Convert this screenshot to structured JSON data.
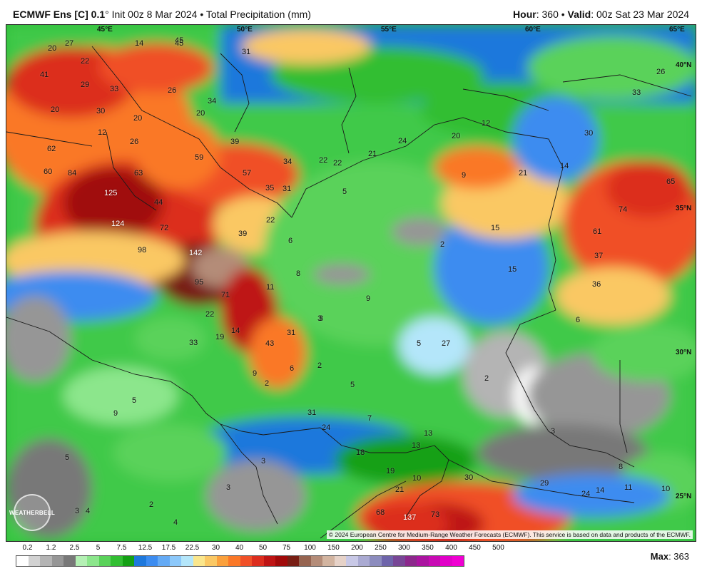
{
  "header": {
    "model": "ECMWF Ens [C] 0.1",
    "init": "° Init 00z 8 Mar 2024 • Total Precipitation (mm)",
    "hour_label": "Hour",
    "hour_value": ": 360 • ",
    "valid_label": "Valid",
    "valid_value": ": 00z Sat 23 Mar 2024"
  },
  "map": {
    "longitudes": [
      "45°E",
      "50°E",
      "55°E",
      "60°E",
      "65°E"
    ],
    "latitudes": [
      "40°N",
      "35°N",
      "30°N",
      "25°N"
    ],
    "copyright": "© 2024 European Centre for Medium-Range Weather Forecasts (ECMWF). This service is based on data and products of the ECMWF.",
    "logo_text": "WEATHERBELL",
    "value_labels": [
      "20",
      "27",
      "45",
      "14",
      "45",
      "31",
      "41",
      "22",
      "29",
      "33",
      "26",
      "20",
      "30",
      "20",
      "34",
      "20",
      "12",
      "26",
      "62",
      "60",
      "84",
      "59",
      "63",
      "39",
      "57",
      "34",
      "22",
      "22",
      "21",
      "24",
      "20",
      "12",
      "9",
      "21",
      "14",
      "65",
      "74",
      "61",
      "37",
      "36",
      "26",
      "30",
      "33",
      "125",
      "44",
      "72",
      "124",
      "98",
      "142",
      "95",
      "71",
      "22",
      "14",
      "19",
      "33",
      "35",
      "31",
      "22",
      "5",
      "39",
      "6",
      "8",
      "11",
      "9",
      "3",
      "43",
      "31",
      "6",
      "15",
      "15",
      "2",
      "27",
      "5",
      "2",
      "9",
      "2",
      "5",
      "5",
      "9",
      "7",
      "3",
      "31",
      "24",
      "13",
      "13",
      "18",
      "19",
      "10",
      "21",
      "30",
      "29",
      "24",
      "14",
      "11",
      "10",
      "6",
      "3",
      "8",
      "5",
      "3",
      "3",
      "2",
      "4",
      "3",
      "4",
      "68",
      "137",
      "73",
      "2"
    ]
  },
  "legend": {
    "levels": [
      "0.2",
      "1.2",
      "2.5",
      "5",
      "7.5",
      "12.5",
      "17.5",
      "22.5",
      "30",
      "40",
      "50",
      "75",
      "100",
      "150",
      "200",
      "250",
      "300",
      "350",
      "400",
      "450",
      "500"
    ],
    "colors": [
      "#ffffff",
      "#d2d2d2",
      "#b4b4b4",
      "#969696",
      "#787878",
      "#b4f0b4",
      "#8ce68c",
      "#5ad25a",
      "#32be32",
      "#14a014",
      "#1e78dc",
      "#3c8cf0",
      "#64aaf5",
      "#8cc8fa",
      "#b4e6fa",
      "#fae68c",
      "#fac864",
      "#faa03c",
      "#fa7828",
      "#f05028",
      "#dc2d1e",
      "#be1414",
      "#a00a0a",
      "#781e14",
      "#966450",
      "#b48c78",
      "#d2b4a0",
      "#e6d2c8",
      "#c8c8e6",
      "#aaaad2",
      "#8c8cbe",
      "#6e64aa",
      "#784696",
      "#8c288c",
      "#aa14a0",
      "#c80ab4",
      "#e100c8",
      "#f000d2"
    ]
  },
  "footer": {
    "max_label": "Max",
    "max_value": ": 363"
  }
}
